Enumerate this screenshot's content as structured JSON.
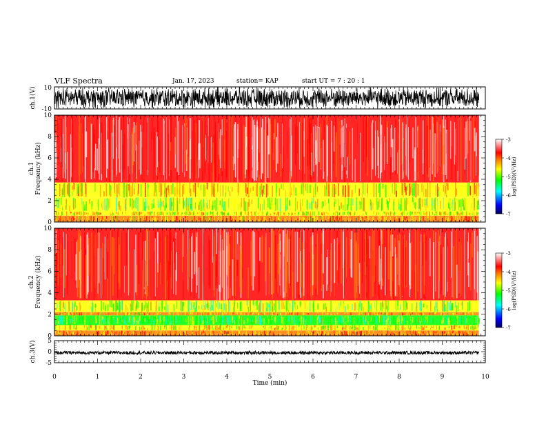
{
  "header": {
    "title": "VLF Spectra",
    "date": "Jan. 17, 2023",
    "station": "station= KAP",
    "start": "start  UT =   7 : 20 : 1"
  },
  "chart_data": [
    {
      "type": "line",
      "panel": "ch1-waveform",
      "ylabel": "ch.1(V)",
      "ylim": [
        -10,
        10
      ],
      "yticks": [
        "10",
        "-10"
      ],
      "x_range_min": [
        0,
        9.85
      ],
      "description_values": "dense full-scale oscillation between about -10 and 10"
    },
    {
      "type": "heatmap",
      "panel": "ch1-spectrogram",
      "ylabel": "ch.1\nFrequency (kHz)",
      "ylabel_lines": [
        "ch.1",
        "Frequency (kHz)"
      ],
      "ylim": [
        0,
        10
      ],
      "yticks": [
        "0",
        "2",
        "4",
        "6",
        "8",
        "10"
      ],
      "bands_khz": [
        {
          "from": 0,
          "to": 0.6,
          "level": -4.3
        },
        {
          "from": 0.6,
          "to": 1.0,
          "level": -4.6
        },
        {
          "from": 1.0,
          "to": 2.3,
          "level": -5.0
        },
        {
          "from": 2.3,
          "to": 3.7,
          "level": -4.5
        },
        {
          "from": 3.7,
          "to": 10,
          "level": -3.3
        }
      ],
      "colorbar": {
        "label": "log(PSD)(V²/Hz)",
        "ticks": [
          "-3",
          "-4",
          "-5",
          "-6",
          "-7"
        ],
        "range": [
          -7,
          -3
        ]
      }
    },
    {
      "type": "heatmap",
      "panel": "ch2-spectrogram",
      "ylabel_lines": [
        "ch.2",
        "Frequency (kHz)"
      ],
      "ylim": [
        0,
        10
      ],
      "yticks": [
        "0",
        "2",
        "4",
        "6",
        "8",
        "10"
      ],
      "bands_khz": [
        {
          "from": 0,
          "to": 0.5,
          "level": -4.2
        },
        {
          "from": 0.5,
          "to": 1.0,
          "level": -4.6
        },
        {
          "from": 1.0,
          "to": 1.9,
          "level": -5.2
        },
        {
          "from": 1.9,
          "to": 2.2,
          "level": -4.4
        },
        {
          "from": 2.2,
          "to": 3.3,
          "level": -5.0
        },
        {
          "from": 3.3,
          "to": 10,
          "level": -3.6
        }
      ],
      "colorbar": {
        "label": "log(PSD)(V²/Hz)",
        "ticks": [
          "-3",
          "-4",
          "-5",
          "-6",
          "-7"
        ],
        "range": [
          -7,
          -3
        ]
      }
    },
    {
      "type": "line",
      "panel": "ch3-waveform",
      "ylabel": "ch.3(V)",
      "ylim": [
        -5,
        5
      ],
      "yticks": [
        "5",
        "0",
        "-5"
      ],
      "description_values": "narrow band around about -0.5"
    }
  ],
  "xaxis": {
    "label": "Time (min)",
    "range": [
      0,
      10
    ],
    "ticks": [
      "0",
      "1",
      "2",
      "3",
      "4",
      "5",
      "6",
      "7",
      "8",
      "9",
      "10"
    ],
    "data_end": 9.85
  },
  "colors": {
    "scale": [
      "#000080",
      "#0000ff",
      "#00ffff",
      "#00ff00",
      "#ffff00",
      "#ff8000",
      "#ff0000",
      "#ffffff"
    ]
  }
}
